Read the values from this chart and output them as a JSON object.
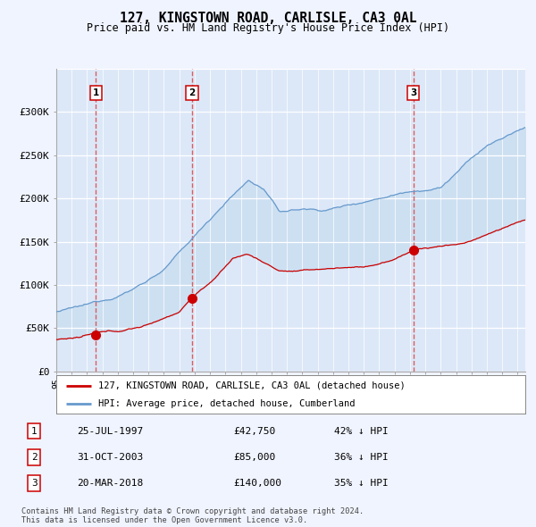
{
  "title": "127, KINGSTOWN ROAD, CARLISLE, CA3 0AL",
  "subtitle": "Price paid vs. HM Land Registry's House Price Index (HPI)",
  "legend_line1": "127, KINGSTOWN ROAD, CARLISLE, CA3 0AL (detached house)",
  "legend_line2": "HPI: Average price, detached house, Cumberland",
  "transactions": [
    {
      "label": "1",
      "date": "25-JUL-1997",
      "price": 42750,
      "pct": "42% ↓ HPI",
      "x_year": 1997.56
    },
    {
      "label": "2",
      "date": "31-OCT-2003",
      "price": 85000,
      "pct": "36% ↓ HPI",
      "x_year": 2003.83
    },
    {
      "label": "3",
      "date": "20-MAR-2018",
      "price": 140000,
      "pct": "35% ↓ HPI",
      "x_year": 2018.22
    }
  ],
  "footer_line1": "Contains HM Land Registry data © Crown copyright and database right 2024.",
  "footer_line2": "This data is licensed under the Open Government Licence v3.0.",
  "fig_bg_color": "#f0f4ff",
  "plot_bg_color": "#dce8f8",
  "red_line_color": "#cc0000",
  "blue_line_color": "#6699cc",
  "fill_color": "#d0e4f5",
  "ylim": [
    0,
    350000
  ],
  "xlim_start": 1995.0,
  "xlim_end": 2025.5,
  "yticks": [
    0,
    50000,
    100000,
    150000,
    200000,
    250000,
    300000
  ],
  "ytick_labels": [
    "£0",
    "£50K",
    "£100K",
    "£150K",
    "£200K",
    "£250K",
    "£300K"
  ]
}
